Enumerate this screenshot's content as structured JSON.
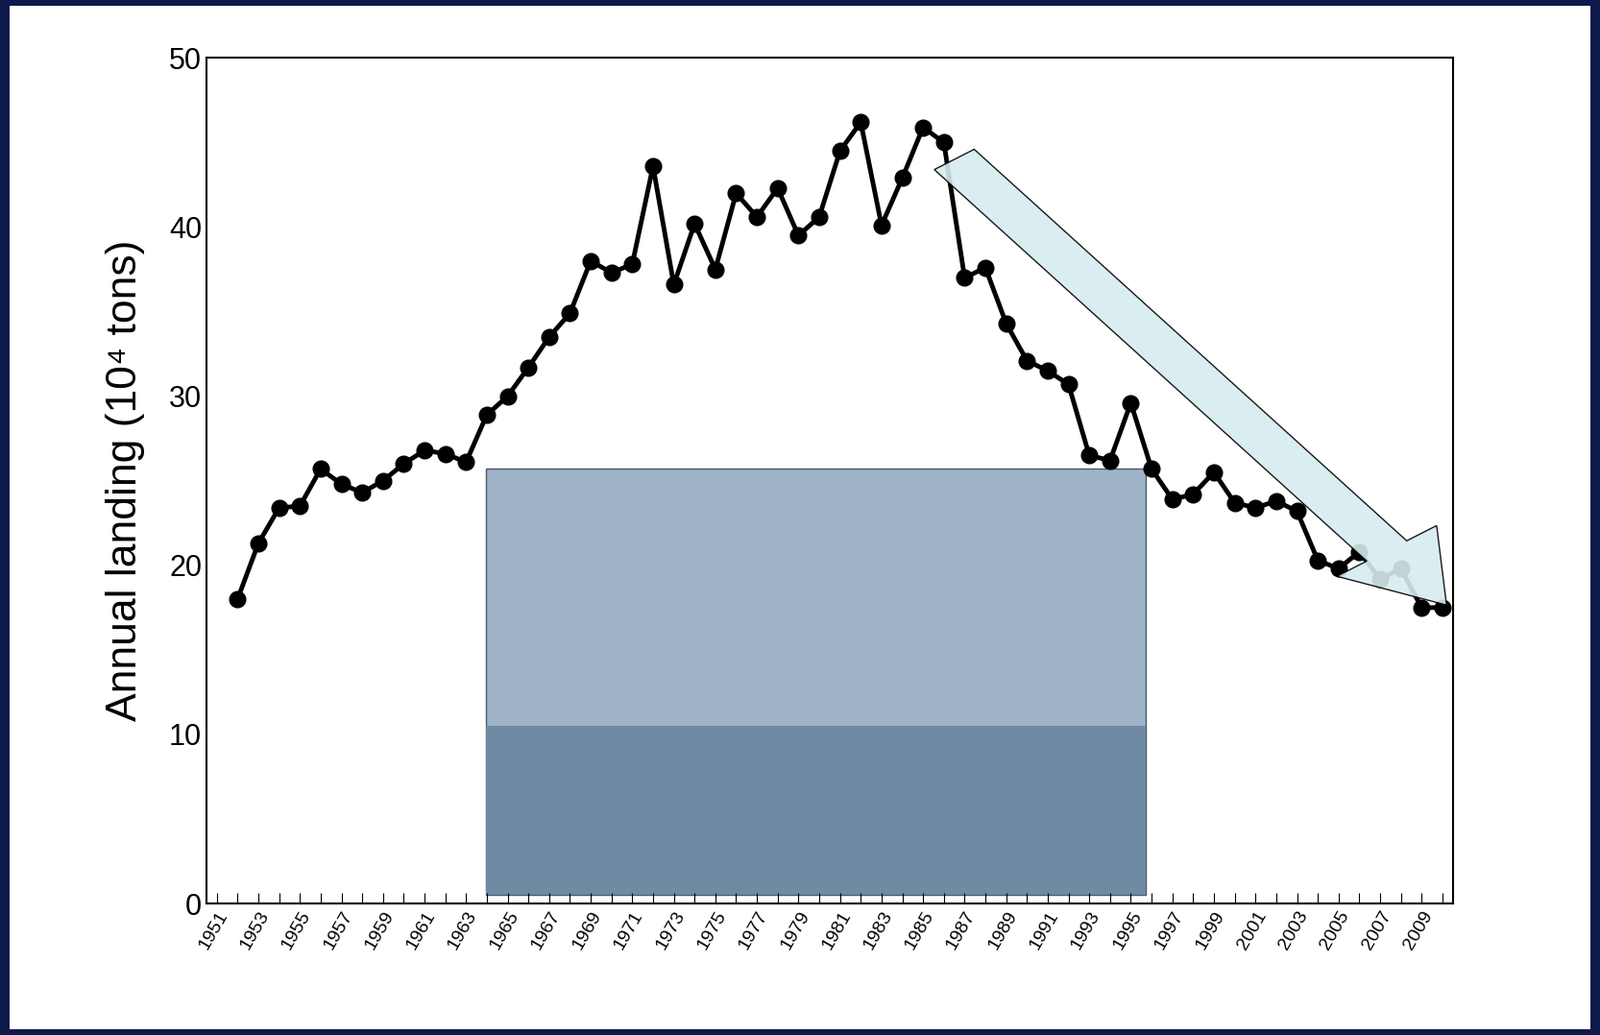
{
  "chart_data": {
    "type": "line",
    "y_label": "Annual landing (10⁴ tons)",
    "categories": [
      "1951",
      null,
      "1953",
      null,
      "1955",
      null,
      "1957",
      null,
      "1959",
      null,
      "1961",
      null,
      "1963",
      null,
      "1965",
      null,
      "1967",
      null,
      "1969",
      null,
      "1971",
      null,
      "1973",
      null,
      "1975",
      null,
      "1977",
      null,
      "1979",
      null,
      "1981",
      null,
      "1983",
      null,
      "1985",
      null,
      "1987",
      null,
      "1989",
      null,
      "1991",
      null,
      "1993",
      null,
      "1995",
      null,
      "1997",
      null,
      "1999",
      null,
      "2001",
      null,
      "2003",
      null,
      "2005",
      null,
      "2007",
      null,
      "2009",
      null
    ],
    "values": [
      null,
      18.0,
      21.3,
      23.4,
      23.5,
      25.7,
      24.8,
      24.3,
      25.0,
      26.0,
      26.8,
      26.6,
      26.1,
      28.9,
      30.0,
      31.7,
      33.5,
      34.9,
      38.0,
      37.3,
      37.8,
      43.6,
      36.6,
      40.2,
      37.5,
      42.0,
      40.6,
      42.3,
      39.5,
      40.6,
      44.5,
      46.2,
      40.1,
      42.9,
      45.9,
      45.0,
      37.0,
      37.6,
      34.3,
      32.1,
      31.5,
      30.7,
      26.5,
      26.2,
      29.6,
      25.7,
      23.9,
      24.2,
      25.5,
      23.7,
      23.4,
      23.8,
      23.2,
      20.3,
      19.8,
      20.8,
      19.2,
      19.8,
      17.5,
      17.5
    ],
    "color": "#000000",
    "marker": "circle",
    "line_style": "solid",
    "ylim": [
      0,
      50
    ],
    "yticks": [
      0,
      10,
      20,
      30,
      40,
      50
    ],
    "grid": false
  }
}
